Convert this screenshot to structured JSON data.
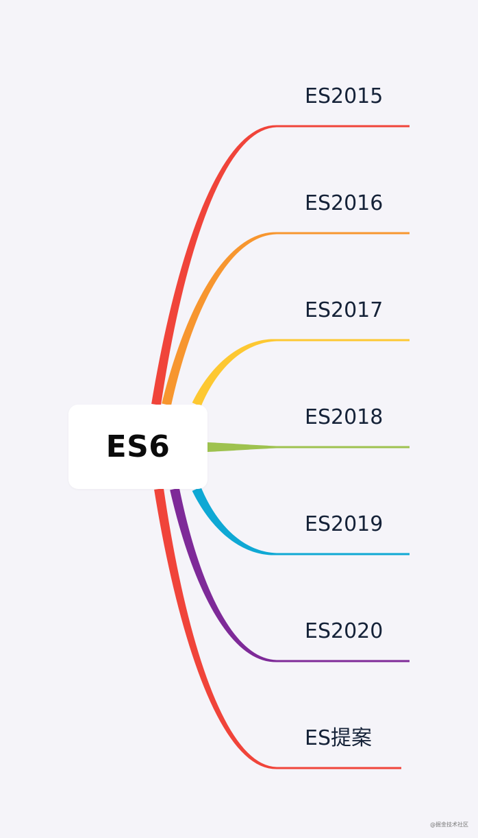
{
  "root": {
    "label": "ES6"
  },
  "branches": [
    {
      "label": "ES2015",
      "color": "#f0443a"
    },
    {
      "label": "ES2016",
      "color": "#f7962f"
    },
    {
      "label": "ES2017",
      "color": "#fdc832"
    },
    {
      "label": "ES2018",
      "color": "#9ec24f"
    },
    {
      "label": "ES2019",
      "color": "#0fa8d4"
    },
    {
      "label": "ES2020",
      "color": "#7e2a98"
    },
    {
      "label": "ES提案",
      "color": "#f0443a"
    }
  ],
  "watermark": "@掘金技术社区"
}
